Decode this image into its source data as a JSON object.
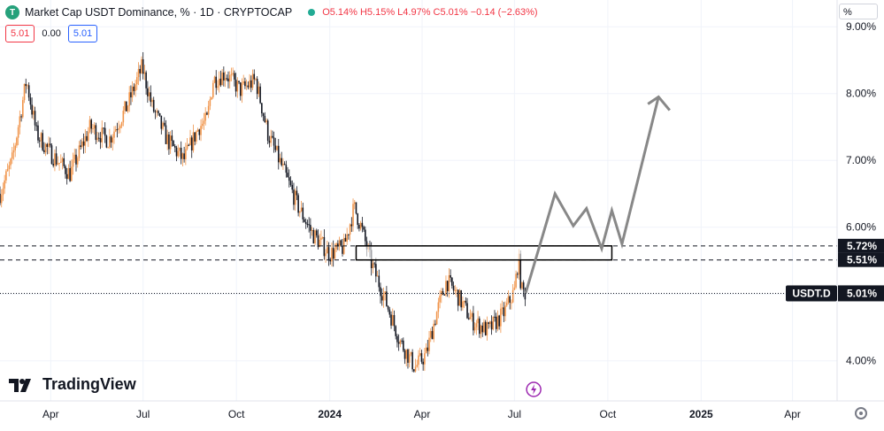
{
  "header": {
    "title": "Market Cap USDT Dominance, % · 1D · CRYPTOCAP",
    "ohlc": "O5.14% H5.15% L4.97% C5.01% −0.14 (−2.63%)",
    "pill_left": "5.01",
    "pill_mid": "0.00",
    "pill_right": "5.01"
  },
  "unit_button": "%",
  "brand": "TradingView",
  "colors": {
    "up": "#f0944a",
    "down": "#131722",
    "projection": "#888888",
    "box_border": "#000000",
    "price_tag": "#131722",
    "event_icon": "#9c27b0"
  },
  "chart_data": {
    "type": "candlestick",
    "ylim": [
      3.4,
      9.4
    ],
    "y_scale": "linear",
    "y_ticks": [
      "9.00%",
      "8.00%",
      "7.00%",
      "6.00%",
      "5.00%",
      "4.00%"
    ],
    "y_tick_values": [
      9,
      8,
      7,
      6,
      5,
      4
    ],
    "x_ticks": [
      "Apr",
      "Jul",
      "Oct",
      "2024",
      "Apr",
      "Jul",
      "Oct",
      "2025",
      "Apr"
    ],
    "x_tick_dates": [
      "2023-04-01",
      "2023-07-01",
      "2023-10-01",
      "2024-01-01",
      "2024-04-01",
      "2024-07-01",
      "2024-10-01",
      "2025-01-01",
      "2025-04-01"
    ],
    "xlim": [
      "2023-02-10",
      "2025-05-15"
    ],
    "price_path": [
      [
        "2023-02-10",
        6.5
      ],
      [
        "2023-02-22",
        7.0
      ],
      [
        "2023-03-08",
        8.2
      ],
      [
        "2023-03-18",
        7.4
      ],
      [
        "2023-04-01",
        7.1
      ],
      [
        "2023-04-20",
        6.8
      ],
      [
        "2023-05-10",
        7.5
      ],
      [
        "2023-05-28",
        7.3
      ],
      [
        "2023-06-15",
        7.8
      ],
      [
        "2023-06-30",
        8.4
      ],
      [
        "2023-07-10",
        7.8
      ],
      [
        "2023-07-25",
        7.3
      ],
      [
        "2023-08-10",
        7.0
      ],
      [
        "2023-08-25",
        7.5
      ],
      [
        "2023-09-02",
        7.6
      ],
      [
        "2023-09-08",
        8.2
      ],
      [
        "2023-09-20",
        8.3
      ],
      [
        "2023-10-05",
        8.05
      ],
      [
        "2023-10-20",
        8.2
      ],
      [
        "2023-11-01",
        7.4
      ],
      [
        "2023-11-15",
        6.9
      ],
      [
        "2023-12-01",
        6.3
      ],
      [
        "2023-12-15",
        5.9
      ],
      [
        "2024-01-01",
        5.6
      ],
      [
        "2024-01-15",
        5.7
      ],
      [
        "2024-01-25",
        6.3
      ],
      [
        "2024-02-01",
        6.0
      ],
      [
        "2024-02-10",
        5.5
      ],
      [
        "2024-02-25",
        4.9
      ],
      [
        "2024-03-10",
        4.3
      ],
      [
        "2024-03-25",
        3.9
      ],
      [
        "2024-04-05",
        4.1
      ],
      [
        "2024-04-15",
        4.7
      ],
      [
        "2024-04-25",
        5.2
      ],
      [
        "2024-05-05",
        5.0
      ],
      [
        "2024-05-20",
        4.6
      ],
      [
        "2024-06-05",
        4.45
      ],
      [
        "2024-06-20",
        4.7
      ],
      [
        "2024-07-01",
        5.05
      ],
      [
        "2024-07-05",
        5.55
      ],
      [
        "2024-07-08",
        5.05
      ],
      [
        "2024-07-12",
        5.01
      ]
    ],
    "current_price": 5.01,
    "current_label": "USDT.D",
    "current_value_label": "5.01%",
    "levels": [
      {
        "value": 5.72,
        "label": "5.72%"
      },
      {
        "value": 5.51,
        "label": "5.51%"
      }
    ],
    "zone": {
      "from": "2024-01-27",
      "to": "2024-10-05",
      "low": 5.51,
      "high": 5.72
    },
    "projection": [
      [
        "2024-07-12",
        5.01
      ],
      [
        "2024-08-10",
        6.5
      ],
      [
        "2024-08-28",
        6.02
      ],
      [
        "2024-09-10",
        6.28
      ],
      [
        "2024-09-25",
        5.68
      ],
      [
        "2024-10-05",
        6.25
      ],
      [
        "2024-10-15",
        5.75
      ],
      [
        "2024-11-20",
        7.95
      ],
      [
        "2024-12-01",
        7.75
      ]
    ],
    "event_marker_date": "2024-07-20"
  }
}
